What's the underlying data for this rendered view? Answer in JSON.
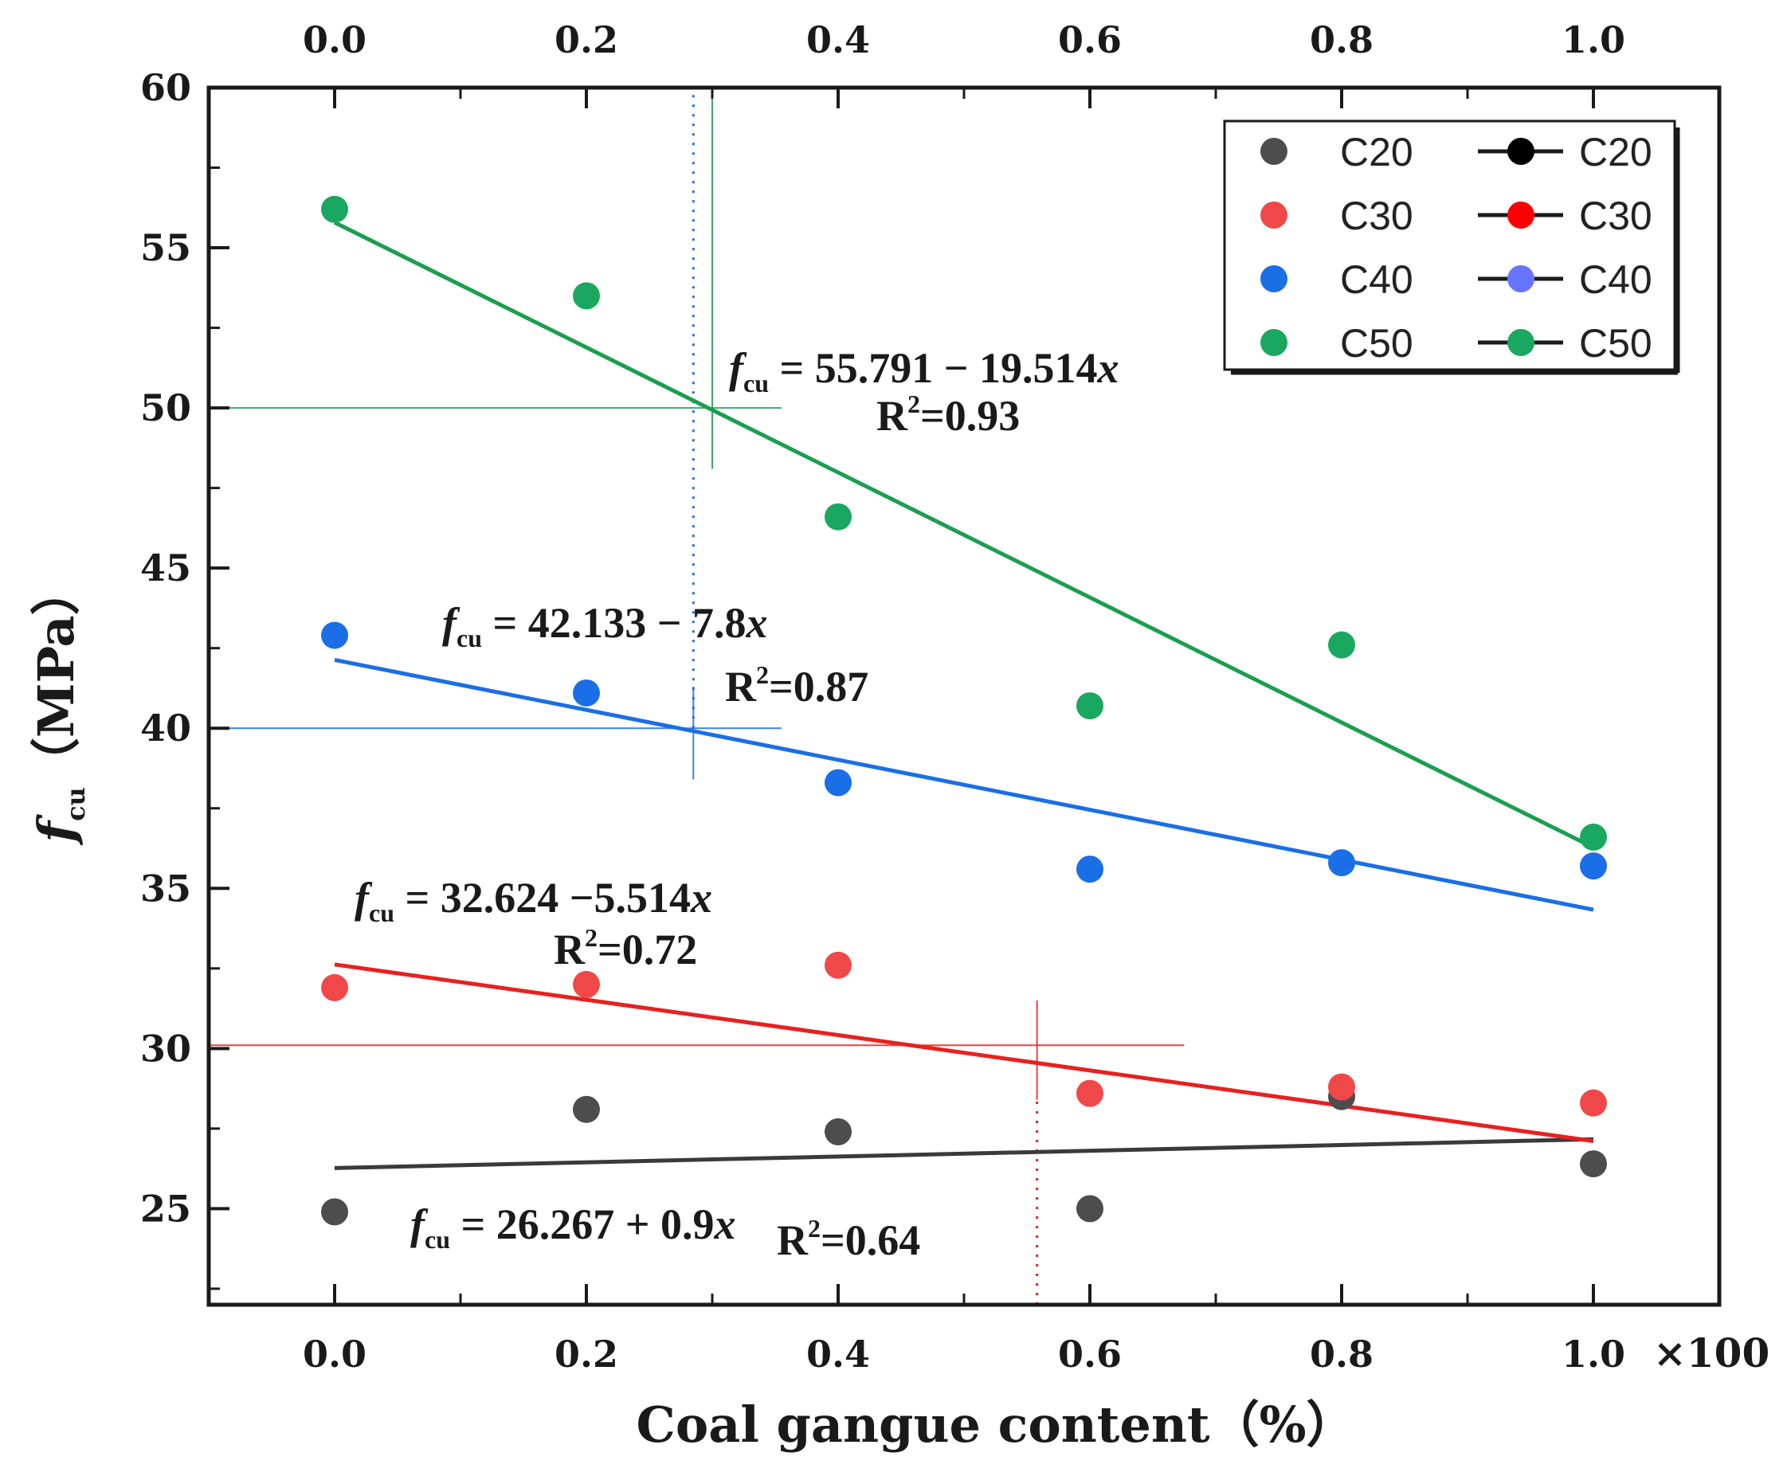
{
  "chart_data": {
    "type": "scatter",
    "title": "",
    "xlabel": "Coal gangue content（%）",
    "ylabel_main": "f",
    "ylabel_sub": "cu",
    "ylabel_unit": "（MPa）",
    "x_multiplier": "×100",
    "xlim": [
      -0.1,
      1.1
    ],
    "ylim": [
      22,
      60
    ],
    "x_ticks": [
      "0.0",
      "0.2",
      "0.4",
      "0.6",
      "0.8",
      "1.0"
    ],
    "x_tick_values": [
      0.0,
      0.2,
      0.4,
      0.6,
      0.8,
      1.0
    ],
    "y_ticks": [
      "25",
      "30",
      "35",
      "40",
      "45",
      "50",
      "55",
      "60"
    ],
    "y_tick_values": [
      25,
      30,
      35,
      40,
      45,
      50,
      55,
      60
    ],
    "x": [
      0.0,
      0.2,
      0.4,
      0.6,
      0.8,
      1.0
    ],
    "series": [
      {
        "name": "C20",
        "color": "#4d4d4d",
        "line_color": "#3a3a3a",
        "legend_line_marker": "#000000",
        "values": [
          24.9,
          28.1,
          27.4,
          25.0,
          28.5,
          26.4
        ],
        "fit": {
          "intercept": 26.267,
          "slope": 0.9
        }
      },
      {
        "name": "C30",
        "color": "#f04848",
        "line_color": "#e82020",
        "legend_line_marker": "#ff0000",
        "values": [
          31.9,
          32.0,
          32.6,
          28.6,
          28.8,
          28.3
        ],
        "fit": {
          "intercept": 32.624,
          "slope": -5.514
        }
      },
      {
        "name": "C40",
        "color": "#1a6ee6",
        "line_color": "#1a6ee6",
        "legend_line_marker": "#6675ff",
        "values": [
          42.9,
          41.1,
          38.3,
          35.6,
          35.8,
          35.7
        ],
        "fit": {
          "intercept": 42.133,
          "slope": -7.8
        }
      },
      {
        "name": "C50",
        "color": "#1aa860",
        "line_color": "#1a9e50",
        "legend_line_marker": "#1aa860",
        "values": [
          56.2,
          53.5,
          46.6,
          40.7,
          42.6,
          36.6
        ],
        "fit": {
          "intercept": 55.791,
          "slope": -19.514
        }
      }
    ],
    "annotations": [
      {
        "series": "C50",
        "f": "f",
        "sub": "cu",
        "eq": " = 55.791 − 19.514",
        "var": "x",
        "r2_label": "R",
        "r2_sup": "2",
        "r2_value": "=0.93"
      },
      {
        "series": "C40",
        "f": "f",
        "sub": "cu",
        "eq": " = 42.133 − 7.8",
        "var": "x",
        "r2_label": "R",
        "r2_sup": "2",
        "r2_value": "=0.87"
      },
      {
        "series": "C30",
        "f": "f",
        "sub": "cu",
        "eq": " = 32.624 −5.514",
        "var": "x",
        "r2_label": "R",
        "r2_sup": "2",
        "r2_value": "=0.72"
      },
      {
        "series": "C20",
        "f": "f",
        "sub": "cu",
        "eq": " = 26.267 + 0.9",
        "var": "x",
        "r2_label": "R",
        "r2_sup": "2",
        "r2_value": "=0.64"
      }
    ],
    "reference_lines": [
      {
        "series": "C50",
        "y": 50,
        "x": 0.3,
        "x_from": -0.1,
        "x_to": 0.355,
        "y_from": 48.1,
        "y_to": 59.8
      },
      {
        "series": "C40",
        "y": 40,
        "x": 0.285,
        "x_from": -0.1,
        "x_to": 0.355,
        "y_from": 38.4,
        "y_to": 41.3
      },
      {
        "series": "C30",
        "y": 30.1,
        "x": 0.558,
        "x_from": -0.1,
        "x_to": 0.675,
        "y_from": 28.4,
        "y_to": 31.5
      }
    ],
    "dotted_lines": [
      {
        "series": "C40",
        "x": 0.285,
        "y_from": 40,
        "y_to": 60
      },
      {
        "series": "C30",
        "x": 0.558,
        "y_from": 22,
        "y_to": 28.4
      }
    ],
    "legend_position": "top-right",
    "grid": false
  }
}
